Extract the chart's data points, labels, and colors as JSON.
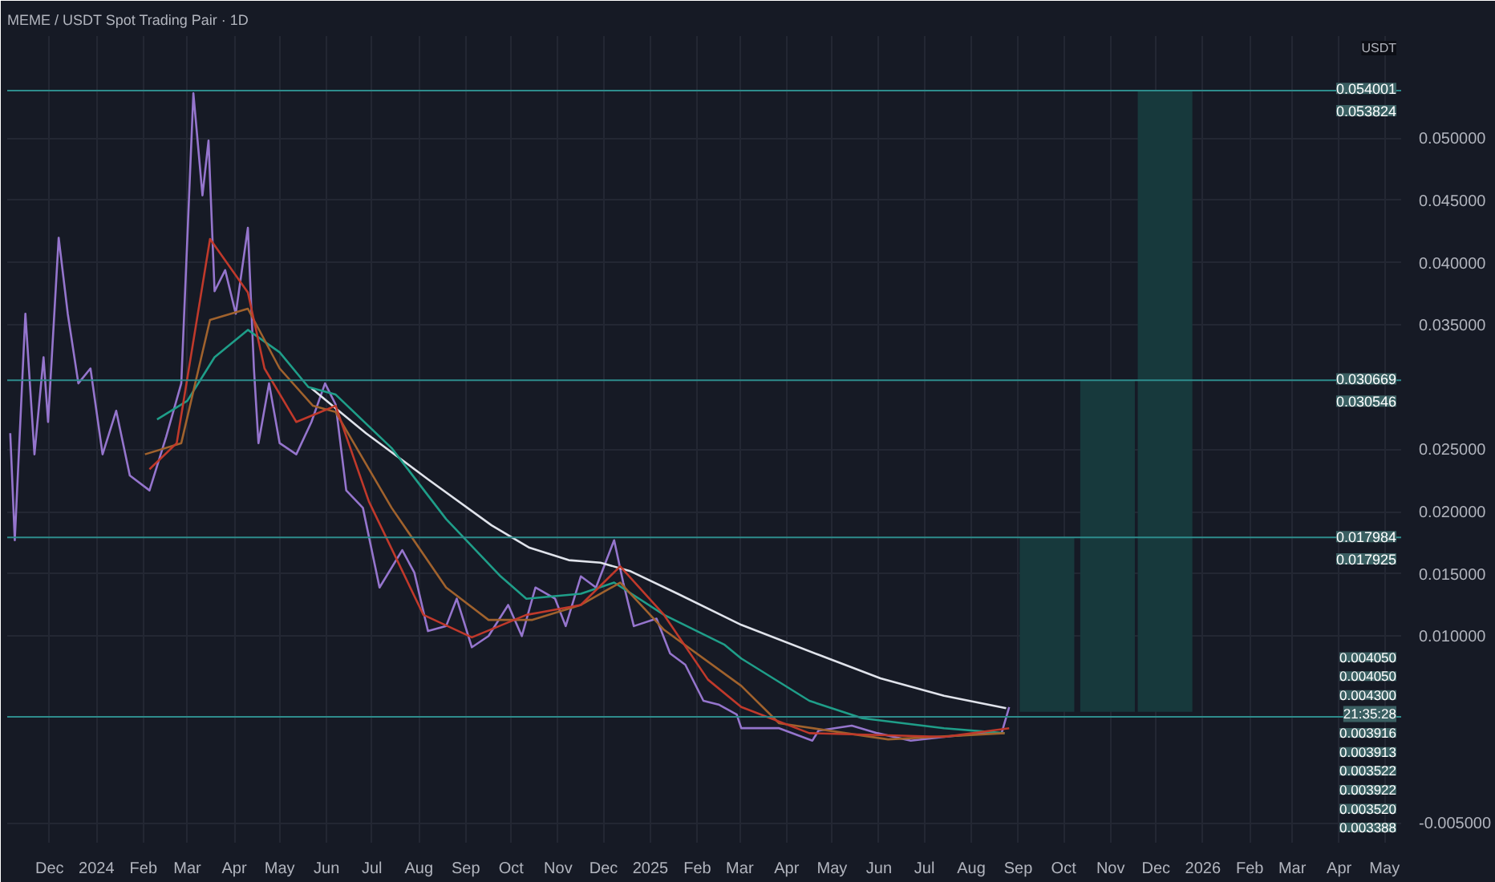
{
  "chart_data": {
    "type": "line",
    "title": "MEME / USDT Spot Trading Pair · 1D",
    "xlim": [
      "2023-11-03",
      "2026-05-12"
    ],
    "ylim": [
      -0.0066,
      0.0582
    ],
    "xticks": [
      {
        "value": "2023-12-01",
        "label": "Dec"
      },
      {
        "value": "2024-01-01",
        "label": "2024"
      },
      {
        "value": "2024-02-01",
        "label": "Feb"
      },
      {
        "value": "2024-03-01",
        "label": "Mar"
      },
      {
        "value": "2024-04-01",
        "label": "Apr"
      },
      {
        "value": "2024-05-01",
        "label": "May"
      },
      {
        "value": "2024-06-01",
        "label": "Jun"
      },
      {
        "value": "2024-07-01",
        "label": "Jul"
      },
      {
        "value": "2024-08-01",
        "label": "Aug"
      },
      {
        "value": "2024-09-01",
        "label": "Sep"
      },
      {
        "value": "2024-10-01",
        "label": "Oct"
      },
      {
        "value": "2024-11-01",
        "label": "Nov"
      },
      {
        "value": "2024-12-01",
        "label": "Dec"
      },
      {
        "value": "2025-01-01",
        "label": "2025"
      },
      {
        "value": "2025-02-01",
        "label": "Feb"
      },
      {
        "value": "2025-03-01",
        "label": "Mar"
      },
      {
        "value": "2025-04-01",
        "label": "Apr"
      },
      {
        "value": "2025-05-01",
        "label": "May"
      },
      {
        "value": "2025-06-01",
        "label": "Jun"
      },
      {
        "value": "2025-07-01",
        "label": "Jul"
      },
      {
        "value": "2025-08-01",
        "label": "Aug"
      },
      {
        "value": "2025-09-01",
        "label": "Sep"
      },
      {
        "value": "2025-10-01",
        "label": "Oct"
      },
      {
        "value": "2025-11-01",
        "label": "Nov"
      },
      {
        "value": "2025-12-01",
        "label": "Dec"
      },
      {
        "value": "2026-01-01",
        "label": "2026"
      },
      {
        "value": "2026-02-01",
        "label": "Feb"
      },
      {
        "value": "2026-03-01",
        "label": "Mar"
      },
      {
        "value": "2026-04-01",
        "label": "Apr"
      },
      {
        "value": "2026-05-01",
        "label": "May"
      }
    ],
    "yticks": [
      {
        "value": -0.005,
        "label": "-0.005000"
      },
      {
        "value": 0.01,
        "label": "0.010000"
      },
      {
        "value": 0.015,
        "label": "0.015000"
      },
      {
        "value": 0.02,
        "label": "0.020000"
      },
      {
        "value": 0.025,
        "label": "0.025000"
      },
      {
        "value": 0.035,
        "label": "0.035000"
      },
      {
        "value": 0.04,
        "label": "0.040000"
      },
      {
        "value": 0.045,
        "label": "0.045000"
      },
      {
        "value": 0.05,
        "label": "0.050000"
      }
    ],
    "grid": true,
    "line_style": "solid",
    "series": [
      {
        "color": "#9575cd",
        "x": [
          "2023-11-05",
          "2023-11-08",
          "2023-11-15",
          "2023-11-21",
          "2023-11-27",
          "2023-11-30",
          "2023-12-07",
          "2023-12-13",
          "2023-12-20",
          "2023-12-28",
          "2024-01-05",
          "2024-01-14",
          "2024-01-23",
          "2024-02-05",
          "2024-02-16",
          "2024-02-26",
          "2024-03-05",
          "2024-03-11",
          "2024-03-15",
          "2024-03-19",
          "2024-03-26",
          "2024-04-02",
          "2024-04-10",
          "2024-04-14",
          "2024-04-17",
          "2024-04-24",
          "2024-05-01",
          "2024-05-12",
          "2024-05-22",
          "2024-05-31",
          "2024-06-07",
          "2024-06-14",
          "2024-06-25",
          "2024-07-06",
          "2024-07-21",
          "2024-07-29",
          "2024-08-07",
          "2024-08-19",
          "2024-08-26",
          "2024-09-05",
          "2024-09-16",
          "2024-09-29",
          "2024-10-08",
          "2024-10-17",
          "2024-10-30",
          "2024-11-06",
          "2024-11-16",
          "2024-11-26",
          "2024-12-08",
          "2024-12-14",
          "2024-12-21",
          "2025-01-05",
          "2025-01-14",
          "2025-01-24",
          "2025-02-05",
          "2025-02-15",
          "2025-02-27",
          "2025-03-02",
          "2025-03-27",
          "2025-04-18",
          "2025-04-22",
          "2025-05-14",
          "2025-05-31",
          "2025-06-22",
          "2025-07-14",
          "2025-08-08",
          "2025-08-21",
          "2025-08-26"
        ],
        "values": [
          0.0263,
          0.0177,
          0.0359,
          0.0246,
          0.0324,
          0.0272,
          0.042,
          0.0359,
          0.0303,
          0.0315,
          0.0246,
          0.0281,
          0.0229,
          0.0217,
          0.026,
          0.0303,
          0.0536,
          0.0454,
          0.0498,
          0.0377,
          0.0394,
          0.0359,
          0.0428,
          0.0315,
          0.0255,
          0.0303,
          0.0255,
          0.0246,
          0.0272,
          0.0303,
          0.0286,
          0.0217,
          0.0203,
          0.0139,
          0.0169,
          0.0151,
          0.0104,
          0.0108,
          0.013,
          0.0091,
          0.01,
          0.0125,
          0.01,
          0.0139,
          0.013,
          0.0108,
          0.0148,
          0.0139,
          0.0177,
          0.0143,
          0.0108,
          0.0114,
          0.0086,
          0.0077,
          0.0048,
          0.0045,
          0.0037,
          0.0026,
          0.0026,
          0.0016,
          0.0024,
          0.0028,
          0.0022,
          0.0016,
          0.0019,
          0.0022,
          0.0022,
          0.0043
        ]
      },
      {
        "color": "#e0e3eb",
        "x": [
          "2024-05-22",
          "2024-06-27",
          "2024-08-07",
          "2024-09-18",
          "2024-10-13",
          "2024-11-08",
          "2024-11-29",
          "2024-12-19",
          "2025-01-19",
          "2025-03-02",
          "2025-04-22",
          "2025-06-02",
          "2025-07-14",
          "2025-08-24"
        ],
        "values": [
          0.0299,
          0.0263,
          0.0226,
          0.0189,
          0.0171,
          0.0161,
          0.0159,
          0.0152,
          0.0134,
          0.0109,
          0.0085,
          0.0066,
          0.0052,
          0.0042
        ]
      },
      {
        "color": "#1f9e89",
        "x": [
          "2024-02-10",
          "2024-03-01",
          "2024-03-19",
          "2024-04-10",
          "2024-05-01",
          "2024-05-20",
          "2024-06-07",
          "2024-07-14",
          "2024-08-19",
          "2024-09-24",
          "2024-10-11",
          "2024-11-16",
          "2024-12-08",
          "2025-01-10",
          "2025-02-19",
          "2025-03-02",
          "2025-04-16",
          "2025-05-21",
          "2025-07-14",
          "2025-08-23"
        ],
        "values": [
          0.0274,
          0.0289,
          0.0324,
          0.0346,
          0.0328,
          0.03,
          0.0294,
          0.0251,
          0.0194,
          0.0148,
          0.013,
          0.0134,
          0.0143,
          0.0117,
          0.0093,
          0.0082,
          0.0048,
          0.0034,
          0.0026,
          0.0022
        ]
      },
      {
        "color": "#a0622d",
        "x": [
          "2024-02-02",
          "2024-02-26",
          "2024-03-16",
          "2024-04-10",
          "2024-05-01",
          "2024-05-23",
          "2024-06-07",
          "2024-07-14",
          "2024-08-19",
          "2024-09-16",
          "2024-10-15",
          "2024-11-16",
          "2024-12-12",
          "2025-01-10",
          "2025-03-02",
          "2025-03-27",
          "2025-06-07",
          "2025-08-23"
        ],
        "values": [
          0.0246,
          0.0255,
          0.0354,
          0.0363,
          0.0315,
          0.0285,
          0.028,
          0.0203,
          0.0139,
          0.0113,
          0.0113,
          0.0125,
          0.0143,
          0.0105,
          0.006,
          0.003,
          0.0017,
          0.0022
        ]
      },
      {
        "color": "#c0392b",
        "x": [
          "2024-02-05",
          "2024-02-23",
          "2024-03-16",
          "2024-04-10",
          "2024-04-21",
          "2024-05-12",
          "2024-06-07",
          "2024-06-29",
          "2024-08-04",
          "2024-09-05",
          "2024-10-11",
          "2024-11-16",
          "2024-12-12",
          "2025-01-10",
          "2025-02-08",
          "2025-03-02",
          "2025-04-16",
          "2025-07-14",
          "2025-08-26"
        ],
        "values": [
          0.0234,
          0.0255,
          0.0419,
          0.0376,
          0.0315,
          0.0272,
          0.0285,
          0.0208,
          0.0117,
          0.0099,
          0.0117,
          0.0125,
          0.0156,
          0.0117,
          0.0065,
          0.0043,
          0.0022,
          0.0019,
          0.0026
        ]
      },
      {
        "type": "bar",
        "color": "#17393c",
        "x": [
          "2025-09-20",
          "2025-10-30",
          "2025-12-07"
        ],
        "base": [
          0.003916,
          0.003916,
          0.003916
        ],
        "values": [
          0.014,
          0.0266,
          0.0499
        ]
      }
    ],
    "ref_lines": [
      {
        "axis": "y",
        "value": 0.053824,
        "color": "#2e8c8c"
      },
      {
        "axis": "y",
        "value": 0.030546,
        "color": "#2e8c8c"
      },
      {
        "axis": "y",
        "value": 0.017925,
        "color": "#2e8c8c"
      },
      {
        "axis": "y",
        "value": 0.00352,
        "color": "#2e8c8c"
      }
    ],
    "annotations": [
      "USDT",
      {
        "text": "0.054001",
        "y": 0.054001
      },
      {
        "text": "0.053824",
        "y": 0.053824
      },
      {
        "text": "0.030669",
        "y": 0.030669
      },
      {
        "text": "0.030546",
        "y": 0.030546
      },
      {
        "text": "0.017984",
        "y": 0.017984
      },
      {
        "text": "0.017925",
        "y": 0.017925
      },
      "0.004050",
      "0.004050",
      "0.004300",
      "21:35:28",
      "0.003916",
      "0.003913",
      "0.003522",
      "0.003922",
      "0.003520",
      "0.003388"
    ]
  }
}
